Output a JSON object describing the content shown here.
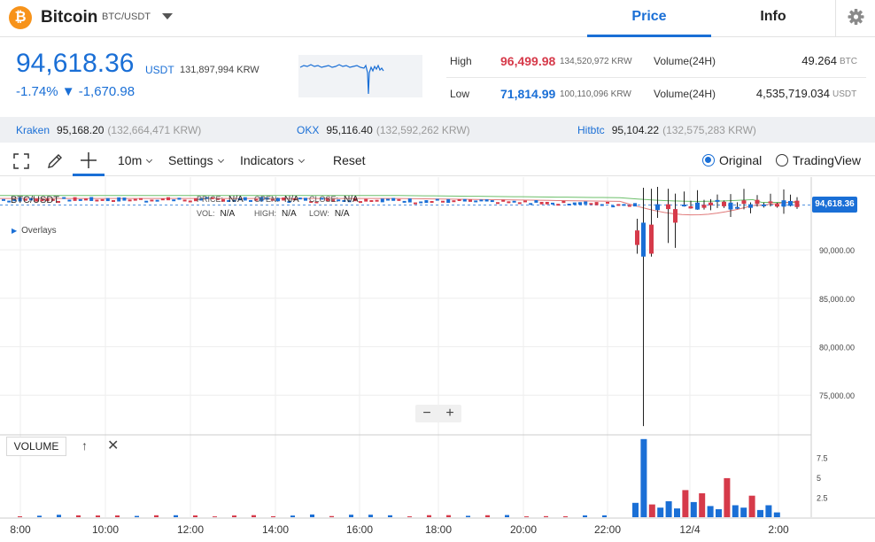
{
  "header": {
    "logo_glyph": "₿",
    "coin_name": "Bitcoin",
    "pair": "BTC/USDT",
    "tabs": [
      {
        "label": "Price",
        "active": true
      },
      {
        "label": "Info",
        "active": false
      }
    ],
    "icons": {
      "dropdown": "chevron-down-icon",
      "settings": "gear-icon"
    }
  },
  "summary": {
    "price": "94,618.36",
    "unit": "USDT",
    "price_krw": "131,897,994 KRW",
    "change": "-1.74% ▼ -1,670.98",
    "high_label": "High",
    "high_value": "96,499.98",
    "high_krw": "134,520,972 KRW",
    "low_label": "Low",
    "low_value": "71,814.99",
    "low_krw": "100,110,096 KRW",
    "vol1_label": "Volume(24H)",
    "vol1_value": "49.264",
    "vol1_unit": "BTC",
    "vol2_label": "Volume(24H)",
    "vol2_value": "4,535,719.034",
    "vol2_unit": "USDT"
  },
  "exchanges": [
    {
      "name": "Kraken",
      "price": "95,168.20",
      "krw": "(132,664,471 KRW)"
    },
    {
      "name": "OKX",
      "price": "95,116.40",
      "krw": "(132,592,262 KRW)"
    },
    {
      "name": "Hitbtc",
      "price": "95,104.22",
      "krw": "(132,575,283 KRW)"
    }
  ],
  "toolbar": {
    "interval": "10m",
    "settings": "Settings",
    "indicators": "Indicators",
    "reset": "Reset",
    "mode_original": "Original",
    "mode_tradingview": "TradingView",
    "selected_mode": "Original",
    "icons": [
      "fullscreen-icon",
      "pencil-icon",
      "crosshair-icon"
    ]
  },
  "legend": {
    "pair": "BTC/USDT",
    "price_label": "PRICE:",
    "price_value": "N/A",
    "open_label": "OPEN:",
    "open_value": "N/A",
    "close_label": "CLOSE:",
    "close_value": "N/A",
    "vol_label": "VOL:",
    "vol_value": "N/A",
    "high_label": "HIGH:",
    "high_value": "N/A",
    "low_label": "LOW:",
    "low_value": "N/A",
    "overlays": "Overlays"
  },
  "volume_panel": {
    "label": "VOLUME"
  },
  "zoom": {
    "minus": "−",
    "plus": "+"
  },
  "colors": {
    "up": "#1a6fd6",
    "down": "#d63a4a",
    "ma_green": "#6cbf6a",
    "ma_red": "#e07a7a"
  },
  "chart_data": {
    "type": "candlestick",
    "current_price": "94,618.36",
    "y_ticks": [
      "90,000.00",
      "85,000.00",
      "80,000.00",
      "75,000.00"
    ],
    "y_tick_values": [
      90000,
      85000,
      80000,
      75000
    ],
    "y_range": [
      71000,
      97500
    ],
    "volume_ticks": [
      "7.5",
      "5",
      "2.5"
    ],
    "volume_tick_values": [
      7.5,
      5,
      2.5
    ],
    "volume_range": [
      0,
      10
    ],
    "x_ticks": [
      "8:00",
      "10:00",
      "12:00",
      "14:00",
      "16:00",
      "18:00",
      "20:00",
      "22:00",
      "12/4",
      "2:00"
    ],
    "grid": true,
    "spike_candles": [
      {
        "time_index": 0,
        "open": 92000,
        "close": 90500,
        "high": 93200,
        "low": 89600
      },
      {
        "time_index": 1,
        "open": 89300,
        "close": 92800,
        "high": 96400,
        "low": 71815
      },
      {
        "time_index": 2,
        "open": 92600,
        "close": 89600,
        "high": 96300,
        "low": 89300
      },
      {
        "time_index": 3,
        "open": 94100,
        "close": 94700,
        "high": 96500,
        "low": 93300
      },
      {
        "time_index": 4,
        "open": 94700,
        "close": 94200,
        "high": 96300,
        "low": 90700
      },
      {
        "time_index": 5,
        "open": 94200,
        "close": 92800,
        "high": 95800,
        "low": 90200
      }
    ],
    "spike_volumes": [
      1.8,
      9.8,
      1.6,
      1.2,
      2.0,
      1.1,
      3.4,
      1.9,
      3.0,
      1.4,
      1.0,
      4.9,
      1.5,
      1.2,
      2.7,
      0.9,
      1.5,
      0.6
    ]
  }
}
